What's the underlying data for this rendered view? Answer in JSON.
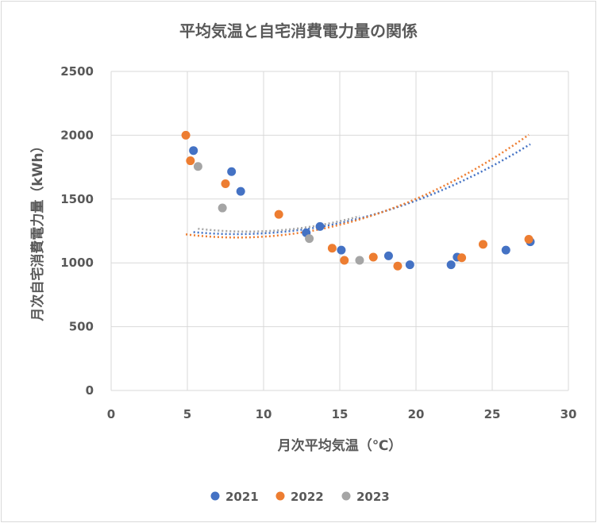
{
  "chart_data": {
    "type": "scatter",
    "title": "平均気温と自宅消費電力量の関係",
    "xlabel": "月次平均気温（℃）",
    "ylabel": "月次自宅消費電力量（kWh）",
    "xlim": [
      0,
      30
    ],
    "ylim": [
      0,
      2500
    ],
    "xticks": [
      "0",
      "5",
      "10",
      "15",
      "20",
      "25",
      "30"
    ],
    "yticks": [
      "0",
      "500",
      "1000",
      "1500",
      "2000",
      "2500"
    ],
    "grid": "vertical and horizontal",
    "legend_position": "bottom",
    "trendline": "polynomial (dotted)",
    "series": [
      {
        "name": "2021",
        "color": "#4472C4",
        "points": [
          [
            5.4,
            1880
          ],
          [
            7.9,
            1715
          ],
          [
            8.5,
            1560
          ],
          [
            12.8,
            1235
          ],
          [
            13.7,
            1285
          ],
          [
            15.1,
            1100
          ],
          [
            18.2,
            1055
          ],
          [
            19.6,
            985
          ],
          [
            22.3,
            985
          ],
          [
            22.7,
            1045
          ],
          [
            25.9,
            1100
          ],
          [
            27.5,
            1165
          ]
        ],
        "trend": [
          1.9,
          1225.2,
          8.24
        ]
      },
      {
        "name": "2022",
        "color": "#ED7D31",
        "points": [
          [
            4.9,
            2000
          ],
          [
            5.2,
            1800
          ],
          [
            7.5,
            1620
          ],
          [
            11.0,
            1380
          ],
          [
            14.5,
            1115
          ],
          [
            15.3,
            1020
          ],
          [
            17.2,
            1045
          ],
          [
            18.8,
            975
          ],
          [
            23.0,
            1040
          ],
          [
            24.4,
            1145
          ],
          [
            27.4,
            1185
          ]
        ],
        "trend": [
          2.2,
          1198.5,
          8.27
        ]
      },
      {
        "name": "2023",
        "color": "#A5A5A5",
        "points": [
          [
            5.7,
            1755
          ],
          [
            7.3,
            1430
          ],
          [
            13.0,
            1190
          ],
          [
            16.3,
            1020
          ]
        ],
        "trend": [
          2.2,
          1245,
          8.9
        ]
      }
    ]
  }
}
